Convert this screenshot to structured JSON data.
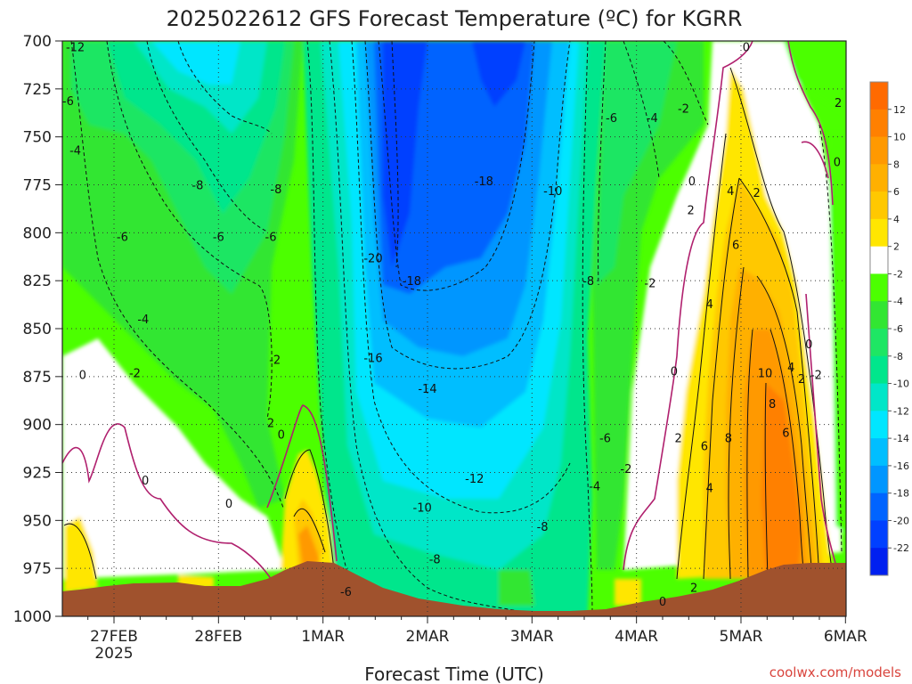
{
  "chart_data": {
    "type": "heatmap",
    "title": "2025022612 GFS Forecast Temperature (ºC) for KGRR",
    "xlabel": "Forecast Time (UTC)",
    "ylabel": "",
    "y_ticks": [
      "700",
      "725",
      "750",
      "775",
      "800",
      "825",
      "850",
      "875",
      "900",
      "925",
      "950",
      "975",
      "1000"
    ],
    "x_ticks": [
      "27FEB",
      "28FEB",
      "1MAR",
      "2MAR",
      "3MAR",
      "4MAR",
      "5MAR",
      "6MAR"
    ],
    "x_year": "2025",
    "credit": "coolwx.com/models",
    "y_range_hpa": [
      700,
      1000
    ],
    "x_range": [
      "2025-02-26T12",
      "2025-03-06T00"
    ],
    "colorbar": {
      "ticks": [
        "12",
        "10",
        "8",
        "6",
        "4",
        "2",
        "-2",
        "-4",
        "-6",
        "-8",
        "-10",
        "-12",
        "-14",
        "-16",
        "-18",
        "-20",
        "-22"
      ],
      "bins": [
        {
          "range": [
            12,
            14
          ],
          "color": "#ff6a00"
        },
        {
          "range": [
            10,
            12
          ],
          "color": "#ff8000"
        },
        {
          "range": [
            8,
            10
          ],
          "color": "#ff9900"
        },
        {
          "range": [
            6,
            8
          ],
          "color": "#ffb000"
        },
        {
          "range": [
            4,
            6
          ],
          "color": "#ffc800"
        },
        {
          "range": [
            2,
            4
          ],
          "color": "#ffe600"
        },
        {
          "range": [
            -2,
            2
          ],
          "color": "#ffffff"
        },
        {
          "range": [
            -4,
            -2
          ],
          "color": "#4cff00"
        },
        {
          "range": [
            -6,
            -4
          ],
          "color": "#32e632"
        },
        {
          "range": [
            -8,
            -6
          ],
          "color": "#1ee664"
        },
        {
          "range": [
            -10,
            -8
          ],
          "color": "#00e68c"
        },
        {
          "range": [
            -12,
            -10
          ],
          "color": "#00e6c8"
        },
        {
          "range": [
            -14,
            -12
          ],
          "color": "#00e6ff"
        },
        {
          "range": [
            -16,
            -14
          ],
          "color": "#00beff"
        },
        {
          "range": [
            -18,
            -16
          ],
          "color": "#0096ff"
        },
        {
          "range": [
            -20,
            -18
          ],
          "color": "#0064ff"
        },
        {
          "range": [
            -22,
            -20
          ],
          "color": "#0040ff"
        },
        {
          "range": [
            -24,
            -22
          ],
          "color": "#0020f0"
        }
      ]
    },
    "contour_labels": [
      {
        "text": "-12",
        "t": 0.13,
        "p": 703
      },
      {
        "text": "-6",
        "t": 0.06,
        "p": 731
      },
      {
        "text": "-4",
        "t": 0.13,
        "p": 757
      },
      {
        "text": "-8",
        "t": 1.3,
        "p": 775
      },
      {
        "text": "-6",
        "t": 0.58,
        "p": 802
      },
      {
        "text": "-6",
        "t": 1.5,
        "p": 802
      },
      {
        "text": "-6",
        "t": 2.0,
        "p": 802
      },
      {
        "text": "-8",
        "t": 2.05,
        "p": 777
      },
      {
        "text": "-4",
        "t": 0.78,
        "p": 845
      },
      {
        "text": "-2",
        "t": 0.7,
        "p": 873
      },
      {
        "text": "0",
        "t": 0.2,
        "p": 874
      },
      {
        "text": "-2",
        "t": 2.04,
        "p": 866
      },
      {
        "text": "2",
        "t": 2.0,
        "p": 899
      },
      {
        "text": "0",
        "t": 2.1,
        "p": 905
      },
      {
        "text": "0",
        "t": 0.8,
        "p": 929
      },
      {
        "text": "0",
        "t": 1.6,
        "p": 941
      },
      {
        "text": "-20",
        "t": 2.98,
        "p": 813
      },
      {
        "text": "-18",
        "t": 3.35,
        "p": 825
      },
      {
        "text": "-18",
        "t": 4.04,
        "p": 773
      },
      {
        "text": "-16",
        "t": 2.98,
        "p": 865
      },
      {
        "text": "-14",
        "t": 3.5,
        "p": 881
      },
      {
        "text": "-12",
        "t": 3.95,
        "p": 928
      },
      {
        "text": "-10",
        "t": 3.45,
        "p": 943
      },
      {
        "text": "-8",
        "t": 3.57,
        "p": 970
      },
      {
        "text": "-6",
        "t": 2.72,
        "p": 987
      },
      {
        "text": "-8",
        "t": 4.6,
        "p": 953
      },
      {
        "text": "-10",
        "t": 4.7,
        "p": 778
      },
      {
        "text": "-8",
        "t": 5.04,
        "p": 825
      },
      {
        "text": "-6",
        "t": 5.26,
        "p": 740
      },
      {
        "text": "-4",
        "t": 5.65,
        "p": 740
      },
      {
        "text": "-2",
        "t": 5.95,
        "p": 735
      },
      {
        "text": "-6",
        "t": 5.2,
        "p": 907
      },
      {
        "text": "-4",
        "t": 5.1,
        "p": 932
      },
      {
        "text": "-2",
        "t": 5.4,
        "p": 923
      },
      {
        "text": "-2",
        "t": 5.63,
        "p": 826
      },
      {
        "text": "0",
        "t": 6.03,
        "p": 773
      },
      {
        "text": "0",
        "t": 5.86,
        "p": 872
      },
      {
        "text": "0",
        "t": 5.75,
        "p": 992
      },
      {
        "text": "2",
        "t": 6.02,
        "p": 788
      },
      {
        "text": "4",
        "t": 6.4,
        "p": 778
      },
      {
        "text": "2",
        "t": 6.65,
        "p": 779
      },
      {
        "text": "6",
        "t": 6.45,
        "p": 806
      },
      {
        "text": "4",
        "t": 6.2,
        "p": 837
      },
      {
        "text": "10",
        "t": 6.73,
        "p": 873
      },
      {
        "text": "8",
        "t": 6.8,
        "p": 889
      },
      {
        "text": "6",
        "t": 6.93,
        "p": 904
      },
      {
        "text": "4",
        "t": 6.98,
        "p": 870
      },
      {
        "text": "2",
        "t": 7.08,
        "p": 876
      },
      {
        "text": "-2",
        "t": 7.22,
        "p": 874
      },
      {
        "text": "6",
        "t": 6.15,
        "p": 911
      },
      {
        "text": "8",
        "t": 6.38,
        "p": 907
      },
      {
        "text": "4",
        "t": 6.2,
        "p": 933
      },
      {
        "text": "2",
        "t": 5.9,
        "p": 907
      },
      {
        "text": "2",
        "t": 6.05,
        "p": 985
      },
      {
        "text": "0",
        "t": 7.15,
        "p": 858
      },
      {
        "text": "0",
        "t": 7.42,
        "p": 763
      },
      {
        "text": "2",
        "t": 7.43,
        "p": 732
      },
      {
        "text": "0",
        "t": 6.55,
        "p": 703
      }
    ]
  }
}
